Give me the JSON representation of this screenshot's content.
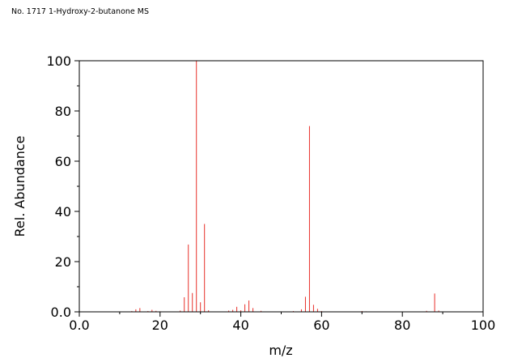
{
  "chart_data": {
    "type": "bar",
    "title": "No. 1717 1-Hydroxy-2-butanone MS",
    "xlabel": "m/z",
    "ylabel": "Rel. Abundance",
    "xlim": [
      0,
      100
    ],
    "ylim": [
      0,
      100
    ],
    "x_ticks": [
      0,
      20,
      40,
      60,
      80,
      100
    ],
    "x_tick_labels": [
      "0.0",
      "20",
      "40",
      "60",
      "80",
      "100"
    ],
    "y_ticks": [
      0,
      20,
      40,
      60,
      80,
      100
    ],
    "y_tick_labels": [
      "0.0",
      "20",
      "40",
      "60",
      "80",
      "100"
    ],
    "grid": false,
    "line_color": "#e8302a",
    "peaks": [
      {
        "mz": 13,
        "intensity": 0.3
      },
      {
        "mz": 14,
        "intensity": 1.0
      },
      {
        "mz": 15,
        "intensity": 1.5
      },
      {
        "mz": 17,
        "intensity": 0.3
      },
      {
        "mz": 18,
        "intensity": 0.8
      },
      {
        "mz": 19,
        "intensity": 0.4
      },
      {
        "mz": 20,
        "intensity": 0.2
      },
      {
        "mz": 25,
        "intensity": 0.5
      },
      {
        "mz": 26,
        "intensity": 5.8
      },
      {
        "mz": 27,
        "intensity": 26.8
      },
      {
        "mz": 28,
        "intensity": 7.5
      },
      {
        "mz": 29,
        "intensity": 100.0
      },
      {
        "mz": 30,
        "intensity": 3.8
      },
      {
        "mz": 31,
        "intensity": 35.0
      },
      {
        "mz": 32,
        "intensity": 0.6
      },
      {
        "mz": 37,
        "intensity": 0.5
      },
      {
        "mz": 38,
        "intensity": 0.8
      },
      {
        "mz": 39,
        "intensity": 2.0
      },
      {
        "mz": 40,
        "intensity": 0.6
      },
      {
        "mz": 41,
        "intensity": 3.0
      },
      {
        "mz": 42,
        "intensity": 4.5
      },
      {
        "mz": 43,
        "intensity": 1.5
      },
      {
        "mz": 45,
        "intensity": 0.4
      },
      {
        "mz": 53,
        "intensity": 0.3
      },
      {
        "mz": 55,
        "intensity": 1.0
      },
      {
        "mz": 56,
        "intensity": 6.0
      },
      {
        "mz": 57,
        "intensity": 74.0
      },
      {
        "mz": 58,
        "intensity": 2.8
      },
      {
        "mz": 59,
        "intensity": 1.2
      },
      {
        "mz": 60,
        "intensity": 0.3
      },
      {
        "mz": 70,
        "intensity": 0.3
      },
      {
        "mz": 71,
        "intensity": 0.2
      },
      {
        "mz": 86,
        "intensity": 0.4
      },
      {
        "mz": 88,
        "intensity": 7.3
      },
      {
        "mz": 89,
        "intensity": 0.5
      }
    ]
  }
}
